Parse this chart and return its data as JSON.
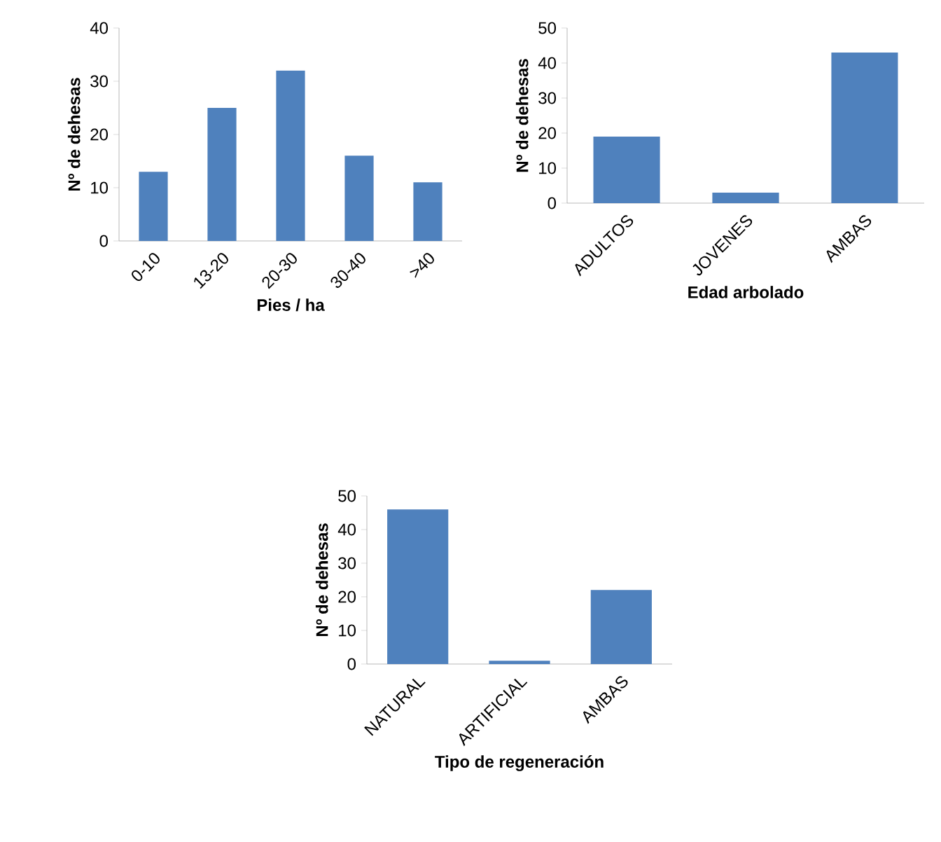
{
  "chart_data": [
    {
      "type": "bar",
      "categories": [
        "0-10",
        "13-20",
        "20-30",
        "30-40",
        ">40"
      ],
      "values": [
        13,
        25,
        32,
        16,
        11
      ],
      "color": "#4f81bd",
      "xlabel": "Pies / ha",
      "ylabel": "Nº de dehesas",
      "ylim": [
        0,
        40
      ],
      "yticks": [
        0,
        10,
        20,
        30,
        40
      ]
    },
    {
      "type": "bar",
      "categories": [
        "ADULTOS",
        "JOVENES",
        "AMBAS"
      ],
      "values": [
        19,
        3,
        43
      ],
      "color": "#4f81bd",
      "xlabel": "Edad arbolado",
      "ylabel": "Nº de dehesas",
      "ylim": [
        0,
        50
      ],
      "yticks": [
        0,
        10,
        20,
        30,
        40,
        50
      ]
    },
    {
      "type": "bar",
      "categories": [
        "NATURAL",
        "ARTIFICIAL",
        "AMBAS"
      ],
      "values": [
        46,
        1,
        22
      ],
      "color": "#4f81bd",
      "xlabel": "Tipo de regeneración",
      "ylabel": "Nº de dehesas",
      "ylim": [
        0,
        50
      ],
      "yticks": [
        0,
        10,
        20,
        30,
        40,
        50
      ]
    }
  ]
}
